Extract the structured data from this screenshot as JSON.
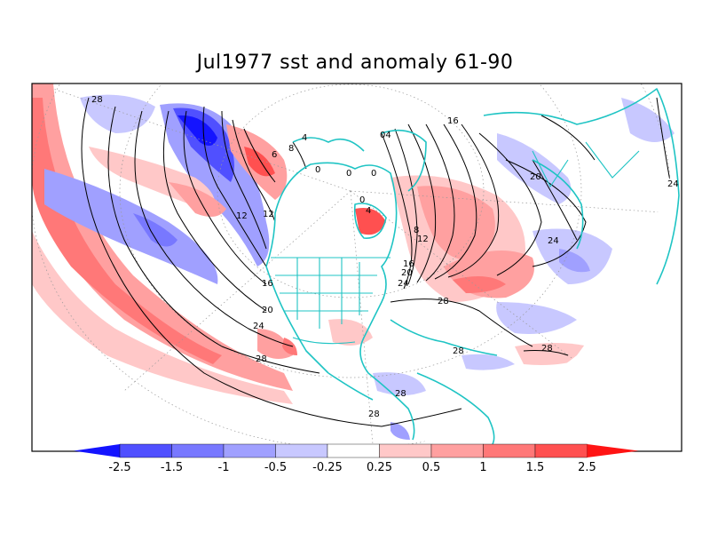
{
  "title": "Jul1977 sst and anomaly 61-90",
  "colorbar": {
    "levels": [
      "-2.5",
      "-1.5",
      "-1",
      "-0.5",
      "-0.25",
      "0.25",
      "0.5",
      "1",
      "1.5",
      "2.5"
    ],
    "colors": [
      "#1414ff",
      "#5050ff",
      "#7878ff",
      "#a0a0ff",
      "#c8c8ff",
      "#ffffff",
      "#ffc8c8",
      "#ffa0a0",
      "#ff7878",
      "#ff5050",
      "#ff1414"
    ]
  },
  "contour_labels": [
    "28",
    "16",
    "12",
    "8",
    "6",
    "4",
    "0",
    "04",
    "20",
    "24",
    "16",
    "12",
    "8",
    "20",
    "24",
    "28",
    "24",
    "20",
    "16",
    "12",
    "28",
    "28",
    "28",
    "28",
    "28",
    "24",
    "4",
    "0",
    "0",
    "0"
  ]
}
